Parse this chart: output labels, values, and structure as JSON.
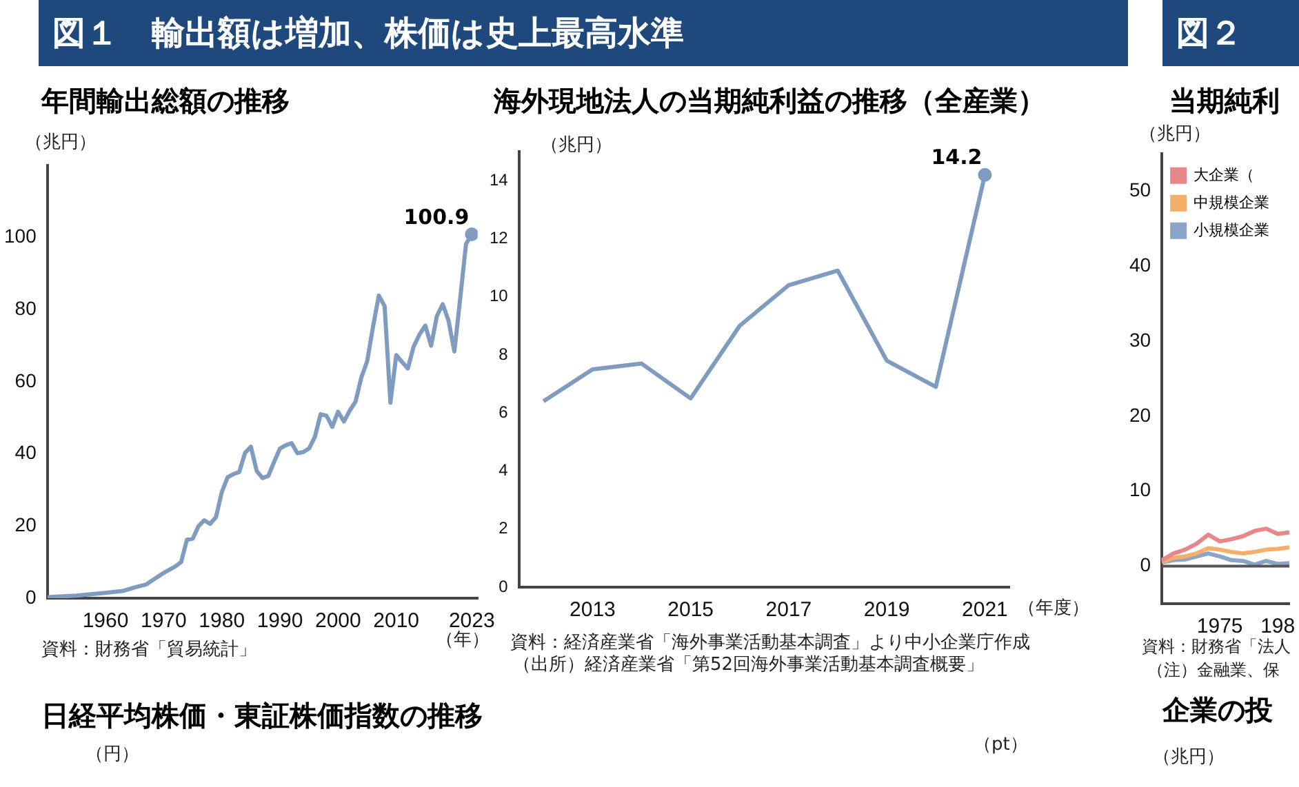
{
  "chart_data": [
    {
      "type": "line",
      "title": "年間輸出総額の推移",
      "ylabel": "（兆円）",
      "xlabel": "（年）",
      "annotations": [
        "図１　輸出額は増加、株価は史上最高水準",
        "資料：財務省「貿易統計」"
      ],
      "x": [
        1950,
        1955,
        1960,
        1963,
        1965,
        1967,
        1970,
        1972,
        1973,
        1974,
        1975,
        1976,
        1977,
        1978,
        1979,
        1980,
        1981,
        1982,
        1983,
        1984,
        1985,
        1986,
        1987,
        1988,
        1989,
        1990,
        1991,
        1992,
        1993,
        1994,
        1995,
        1996,
        1997,
        1998,
        1999,
        2000,
        2001,
        2002,
        2003,
        2004,
        2005,
        2006,
        2007,
        2008,
        2009,
        2010,
        2011,
        2012,
        2013,
        2014,
        2015,
        2016,
        2017,
        2018,
        2019,
        2020,
        2021,
        2022,
        2023
      ],
      "series": [
        {
          "color": "#7f9cc0",
          "values": [
            0.3,
            0.7,
            1.5,
            2.0,
            3.0,
            3.8,
            7.0,
            8.8,
            10,
            16.2,
            16.5,
            20,
            21.6,
            20.6,
            22.5,
            29.4,
            33.5,
            34.4,
            35,
            40.3,
            42,
            35.3,
            33.3,
            33.9,
            37.8,
            41.5,
            42.4,
            43,
            40.2,
            40.5,
            41.5,
            44.7,
            51,
            50.6,
            47.5,
            51.7,
            49,
            52,
            54.5,
            61.2,
            65.7,
            75.2,
            83.9,
            81,
            54.2,
            67.4,
            65.5,
            63.7,
            69.8,
            73.1,
            75.6,
            70,
            78.3,
            81.5,
            76.9,
            68.4,
            83.1,
            98.2,
            100.9
          ],
          "value_labels": [
            null,
            null,
            null,
            null,
            null,
            null,
            null,
            null,
            null,
            null,
            null,
            null,
            null,
            null,
            null,
            null,
            null,
            null,
            null,
            null,
            null,
            null,
            null,
            null,
            null,
            null,
            null,
            null,
            null,
            null,
            null,
            null,
            null,
            null,
            null,
            null,
            null,
            null,
            null,
            null,
            null,
            null,
            null,
            null,
            null,
            null,
            null,
            null,
            null,
            null,
            null,
            null,
            null,
            null,
            null,
            null,
            null,
            null,
            "100.9"
          ]
        }
      ],
      "xlim": [
        1950,
        2024
      ],
      "xticks": [
        1960,
        1970,
        1980,
        1990,
        2000,
        2010,
        2023
      ],
      "ylim": [
        0,
        120
      ],
      "yticks": [
        0,
        20,
        40,
        60,
        80,
        100
      ],
      "grid": false,
      "legend": false
    },
    {
      "type": "line",
      "title": "海外現地法人の当期純利益の推移（全産業）",
      "ylabel": "（兆円）",
      "xlabel": "（年度）",
      "annotations": [
        "資料：経済産業省「海外事業活動基本調査」より中小企業庁作成",
        "（出所）経済産業省「第52回海外事業活動基本調査概要」"
      ],
      "x": [
        2012,
        2013,
        2014,
        2015,
        2016,
        2017,
        2018,
        2019,
        2020,
        2021
      ],
      "series": [
        {
          "color": "#7f9cc0",
          "values": [
            6.4,
            7.5,
            7.7,
            6.5,
            9.0,
            10.4,
            10.9,
            7.8,
            6.9,
            14.2
          ],
          "value_labels": [
            null,
            null,
            null,
            null,
            null,
            null,
            null,
            null,
            null,
            "14.2"
          ]
        }
      ],
      "xlim": [
        2011.5,
        2021.5
      ],
      "xticks": [
        2013,
        2015,
        2017,
        2019,
        2021
      ],
      "ylim": [
        0,
        15
      ],
      "yticks": [
        0,
        2,
        4,
        6,
        8,
        10,
        12,
        14
      ],
      "grid": false,
      "legend": false
    },
    {
      "type": "line",
      "title": "当期純利",
      "ylabel": "（兆円）",
      "annotations": [
        "図２",
        "資料：財務省「法人",
        "（注）金融業、保"
      ],
      "categories": [
        null,
        null,
        null,
        null,
        null,
        "1975",
        null,
        null,
        null,
        null,
        "198",
        null
      ],
      "series": [
        {
          "name": "大企業（",
          "color": "#e8878a",
          "values": [
            0.8,
            1.7,
            2.2,
            3.0,
            4.2,
            3.3,
            3.6,
            4.0,
            4.7,
            5.0,
            4.3,
            4.5
          ]
        },
        {
          "name": "中規模企業",
          "color": "#f4b06a",
          "values": [
            0.6,
            1.1,
            1.3,
            1.7,
            2.4,
            2.2,
            1.9,
            1.7,
            1.9,
            2.2,
            2.3,
            2.5
          ]
        },
        {
          "name": "小規模企業",
          "color": "#8aa5c8",
          "values": [
            0.5,
            0.8,
            0.9,
            1.3,
            1.7,
            1.3,
            0.8,
            0.7,
            0.2,
            0.7,
            0.3,
            0.4
          ]
        }
      ],
      "ylim": [
        -5,
        55
      ],
      "yticks": [
        0,
        10,
        20,
        30,
        40,
        50
      ],
      "ref_lines": [
        {
          "axis": "y",
          "value": 0,
          "color": "#555555"
        }
      ],
      "grid": false,
      "legend": "top left"
    },
    {
      "type": "other",
      "title": "日経平均株価・東証株価指数の推移",
      "ylabel": "（円）",
      "y2label": "（pt）"
    },
    {
      "type": "other",
      "title": "企業の投",
      "ylabel": "（兆円）"
    }
  ]
}
